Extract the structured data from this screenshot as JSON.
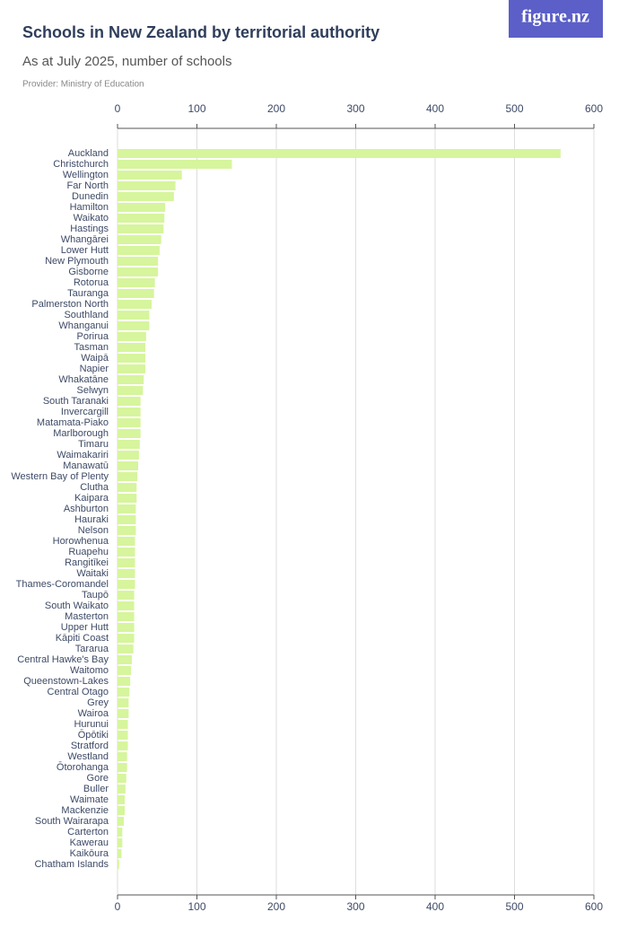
{
  "logo": "figure.nz",
  "chart_data": {
    "type": "bar",
    "orientation": "horizontal",
    "title": "Schools in New Zealand by territorial authority",
    "subtitle": "As at July 2025, number of schools",
    "source": "Provider: Ministry of Education",
    "categories": [
      "Auckland",
      "Christchurch",
      "Wellington",
      "Far North",
      "Dunedin",
      "Hamilton",
      "Waikato",
      "Hastings",
      "Whangārei",
      "Lower Hutt",
      "New Plymouth",
      "Gisborne",
      "Rotorua",
      "Tauranga",
      "Palmerston North",
      "Southland",
      "Whanganui",
      "Porirua",
      "Tasman",
      "Waipā",
      "Napier",
      "Whakatāne",
      "Selwyn",
      "South Taranaki",
      "Invercargill",
      "Matamata-Piako",
      "Marlborough",
      "Timaru",
      "Waimakariri",
      "Manawatū",
      "Western Bay of Plenty",
      "Clutha",
      "Kaipara",
      "Ashburton",
      "Hauraki",
      "Nelson",
      "Horowhenua",
      "Ruapehu",
      "Rangitīkei",
      "Waitaki",
      "Thames-Coromandel",
      "Taupō",
      "South Waikato",
      "Masterton",
      "Upper Hutt",
      "Kāpiti Coast",
      "Tararua",
      "Central Hawke's Bay",
      "Waitomo",
      "Queenstown-Lakes",
      "Central Otago",
      "Grey",
      "Wairoa",
      "Hurunui",
      "Ōpōtiki",
      "Stratford",
      "Westland",
      "Ōtorohanga",
      "Gore",
      "Buller",
      "Waimate",
      "Mackenzie",
      "South Wairarapa",
      "Carterton",
      "Kawerau",
      "Kaikōura",
      "Chatham Islands"
    ],
    "values": [
      558,
      144,
      81,
      73,
      71,
      60,
      59,
      58,
      55,
      53,
      51,
      51,
      47,
      46,
      43,
      40,
      40,
      36,
      35,
      35,
      35,
      33,
      32,
      29,
      29,
      29,
      29,
      28,
      27,
      26,
      25,
      24,
      24,
      23,
      23,
      23,
      22,
      22,
      22,
      22,
      22,
      21,
      21,
      21,
      21,
      21,
      20,
      18,
      17,
      16,
      15,
      14,
      14,
      13,
      13,
      13,
      12,
      12,
      11,
      10,
      9,
      9,
      8,
      6,
      6,
      5,
      2
    ],
    "color": "#d6f59c",
    "xlim": [
      0,
      600
    ],
    "xticks": [
      0,
      100,
      200,
      300,
      400,
      500,
      600
    ],
    "grid": true
  }
}
